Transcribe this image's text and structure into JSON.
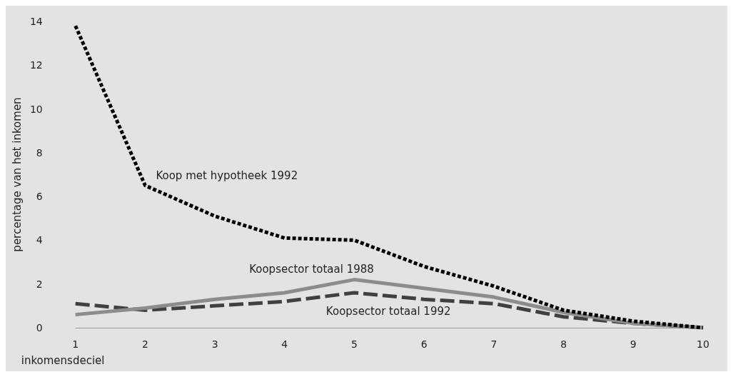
{
  "chart_data": {
    "type": "line",
    "xlabel": "inkomensdeciel",
    "ylabel": "percentage van het inkomen",
    "categories": [
      "1",
      "2",
      "3",
      "4",
      "5",
      "6",
      "7",
      "8",
      "9",
      "10"
    ],
    "ylim": [
      0,
      14
    ],
    "yticks": [
      0,
      2,
      4,
      6,
      8,
      10,
      12,
      14
    ],
    "grid": false,
    "legend": false,
    "marker": "none",
    "series": [
      {
        "name": "Koop met hypotheek 1992",
        "color": "#000000",
        "line_style": "dotted",
        "values": [
          13.8,
          6.5,
          5.1,
          4.1,
          4.0,
          2.8,
          1.9,
          0.8,
          0.3,
          0.0
        ]
      },
      {
        "name": "Koopsector totaal 1988",
        "color": "#8c8c8c",
        "line_style": "solid",
        "values": [
          0.6,
          0.9,
          1.3,
          1.6,
          2.2,
          1.8,
          1.4,
          0.7,
          0.2,
          0.0
        ]
      },
      {
        "name": "Koopsector totaal 1992",
        "color": "#404040",
        "line_style": "dashed",
        "values": [
          1.1,
          0.8,
          1.0,
          1.2,
          1.6,
          1.3,
          1.1,
          0.5,
          0.2,
          0.0
        ]
      }
    ]
  }
}
